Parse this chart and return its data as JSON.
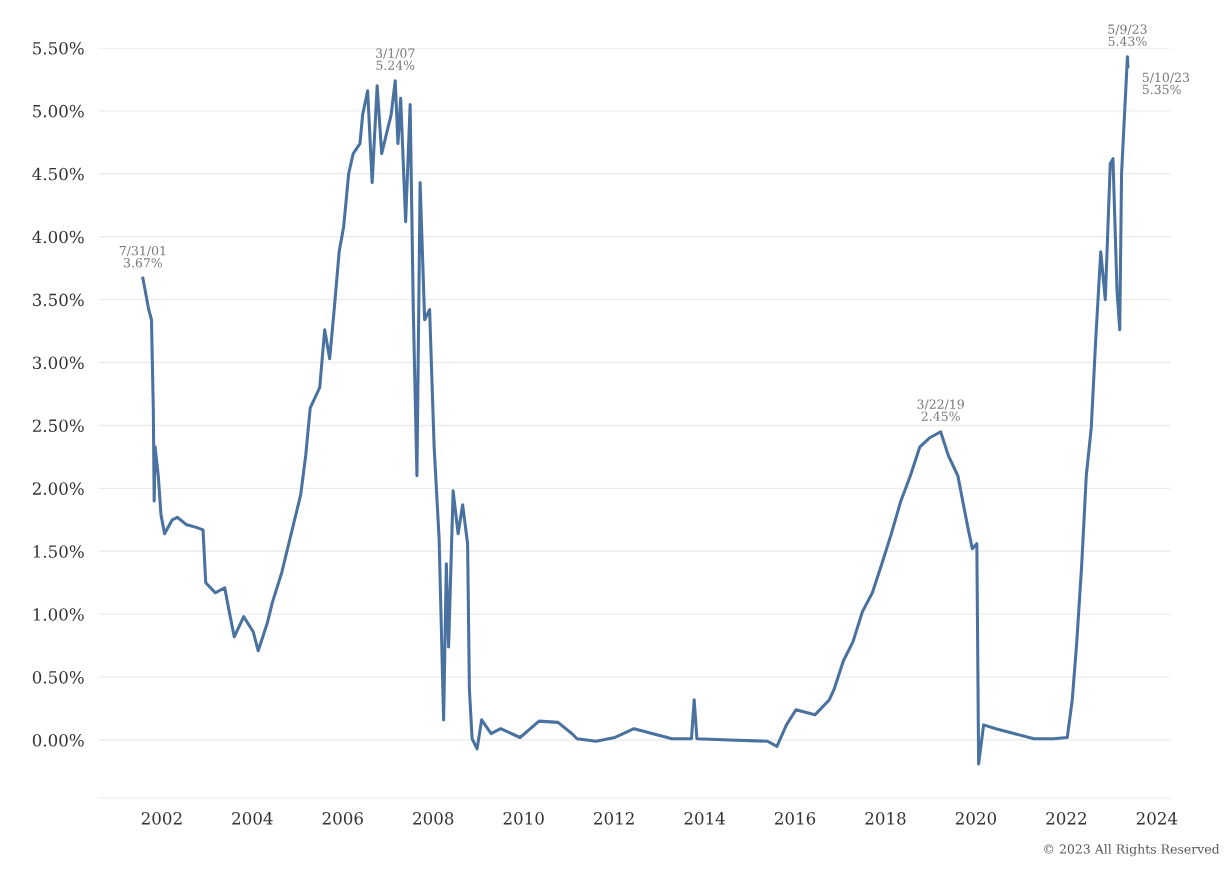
{
  "chart_data": {
    "type": "line",
    "grid": "y",
    "xlim": [
      2000.6,
      2024.3
    ],
    "ylim": [
      -0.46,
      5.5
    ],
    "xticks": [
      2002,
      2004,
      2006,
      2008,
      2010,
      2012,
      2014,
      2016,
      2018,
      2020,
      2022,
      2024
    ],
    "yticks": [
      {
        "value": 0,
        "label": "0.00%"
      },
      {
        "value": 0.5,
        "label": "0.50%"
      },
      {
        "value": 1,
        "label": "1.00%"
      },
      {
        "value": 1.5,
        "label": "1.50%"
      },
      {
        "value": 2,
        "label": "2.00%"
      },
      {
        "value": 2.5,
        "label": "2.50%"
      },
      {
        "value": 3,
        "label": "3.00%"
      },
      {
        "value": 3.5,
        "label": "3.50%"
      },
      {
        "value": 4,
        "label": "4.00%"
      },
      {
        "value": 4.5,
        "label": "4.50%"
      },
      {
        "value": 5,
        "label": "5.00%"
      },
      {
        "value": 5.5,
        "label": "5.50%"
      }
    ],
    "series": [
      {
        "color": "#4a72a0",
        "x": [
          2001.58,
          2001.71,
          2001.77,
          2001.81,
          2001.83,
          2001.85,
          2001.92,
          2001.98,
          2002.06,
          2002.23,
          2002.34,
          2002.55,
          2002.76,
          2002.91,
          2002.97,
          2003.18,
          2003.39,
          2003.49,
          2003.6,
          2003.81,
          2004.02,
          2004.13,
          2004.34,
          2004.44,
          2004.65,
          2004.86,
          2005.07,
          2005.18,
          2005.28,
          2005.49,
          2005.6,
          2005.71,
          2005.81,
          2005.92,
          2006.02,
          2006.13,
          2006.23,
          2006.38,
          2006.44,
          2006.55,
          2006.65,
          2006.76,
          2006.86,
          2007.07,
          2007.16,
          2007.22,
          2007.28,
          2007.39,
          2007.49,
          2007.56,
          2007.64,
          2007.71,
          2007.81,
          2007.92,
          2008.02,
          2008.13,
          2008.23,
          2008.29,
          2008.34,
          2008.44,
          2008.55,
          2008.65,
          2008.76,
          2008.8,
          2008.86,
          2008.97,
          2009.07,
          2009.28,
          2009.49,
          2009.92,
          2010.34,
          2010.76,
          2011.07,
          2011.18,
          2011.6,
          2012.02,
          2012.44,
          2012.86,
          2013.28,
          2013.71,
          2013.77,
          2013.83,
          2014.55,
          2015.39,
          2015.6,
          2015.81,
          2016.02,
          2016.44,
          2016.76,
          2016.86,
          2017.07,
          2017.28,
          2017.49,
          2017.71,
          2017.92,
          2018.13,
          2018.34,
          2018.55,
          2018.76,
          2018.97,
          2019.22,
          2019.39,
          2019.6,
          2019.81,
          2019.92,
          2020.02,
          2020.06,
          2020.17,
          2020.44,
          2020.86,
          2021.28,
          2021.71,
          2022.02,
          2022.13,
          2022.23,
          2022.34,
          2022.44,
          2022.55,
          2022.65,
          2022.76,
          2022.86,
          2022.97,
          2023.03,
          2023.12,
          2023.18,
          2023.22,
          2023.35,
          2023.36
        ],
        "values": [
          3.67,
          3.42,
          3.34,
          2.64,
          1.9,
          2.33,
          2.1,
          1.79,
          1.64,
          1.75,
          1.77,
          1.71,
          1.69,
          1.67,
          1.25,
          1.17,
          1.21,
          1.02,
          0.82,
          0.98,
          0.86,
          0.71,
          0.94,
          1.09,
          1.33,
          1.64,
          1.95,
          2.26,
          2.64,
          2.8,
          3.26,
          3.03,
          3.42,
          3.88,
          4.08,
          4.5,
          4.66,
          4.74,
          4.97,
          5.16,
          4.43,
          5.2,
          4.66,
          4.97,
          5.24,
          4.74,
          5.1,
          4.12,
          5.05,
          3.4,
          2.1,
          4.43,
          3.34,
          3.42,
          2.33,
          1.6,
          0.16,
          1.4,
          0.74,
          1.98,
          1.64,
          1.87,
          1.56,
          0.4,
          0.01,
          -0.07,
          0.16,
          0.05,
          0.09,
          0.02,
          0.15,
          0.14,
          0.05,
          0.01,
          -0.01,
          0.02,
          0.09,
          0.05,
          0.01,
          0.01,
          0.32,
          0.01,
          0.0,
          -0.01,
          -0.05,
          0.12,
          0.24,
          0.2,
          0.32,
          0.4,
          0.63,
          0.78,
          1.02,
          1.17,
          1.4,
          1.64,
          1.9,
          2.1,
          2.33,
          2.4,
          2.45,
          2.26,
          2.1,
          1.71,
          1.52,
          1.56,
          -0.19,
          0.12,
          0.09,
          0.05,
          0.01,
          0.01,
          0.02,
          0.32,
          0.78,
          1.4,
          2.1,
          2.48,
          3.19,
          3.88,
          3.5,
          4.58,
          4.62,
          3.57,
          3.26,
          4.5,
          5.43,
          5.35
        ]
      }
    ],
    "annotations": [
      {
        "text": "7/31/01\n3.67%",
        "x": 2001.58,
        "y": 3.67
      },
      {
        "text": "3/1/07\n5.24%",
        "x": 2007.16,
        "y": 5.24
      },
      {
        "text": "3/22/19\n2.45%",
        "x": 2019.22,
        "y": 2.45
      },
      {
        "text": "5/9/23\n5.43%",
        "x": 2023.35,
        "y": 5.43
      },
      {
        "text": "5/10/23\n5.35%",
        "x": 2023.36,
        "y": 5.35
      },
      "© 2023 All Rights Reserved"
    ]
  }
}
